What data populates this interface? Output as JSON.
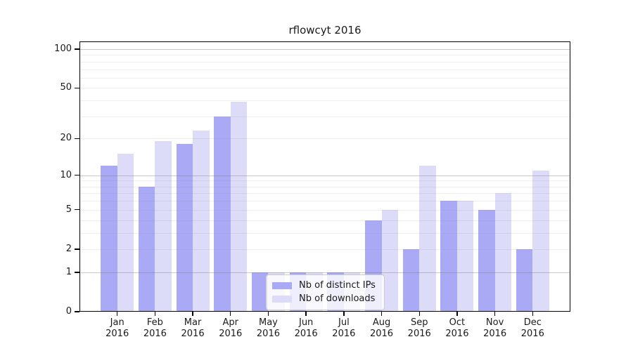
{
  "chart_data": {
    "type": "bar",
    "title": "rflowcyt 2016",
    "categories": [
      "Jan",
      "Feb",
      "Mar",
      "Apr",
      "May",
      "Jun",
      "Jul",
      "Aug",
      "Sep",
      "Oct",
      "Nov",
      "Dec"
    ],
    "year_label": "2016",
    "series": [
      {
        "name": "Nb of distinct IPs",
        "color": "#a9a9f6",
        "values": [
          12,
          8,
          18,
          30,
          1,
          1,
          1,
          4,
          2,
          6,
          5,
          2
        ]
      },
      {
        "name": "Nb of downloads",
        "color": "#dcdcf9",
        "values": [
          15,
          19,
          23,
          39,
          1,
          1,
          1,
          5,
          12,
          6,
          7,
          11
        ]
      }
    ],
    "y_axis": {
      "scale": "log1p",
      "tick_labels": [
        0,
        1,
        2,
        5,
        10,
        20,
        50,
        100
      ],
      "major_gridlines": [
        1,
        10,
        100
      ],
      "minor_gridlines": [
        2,
        3,
        4,
        5,
        6,
        7,
        8,
        9,
        20,
        30,
        40,
        50,
        60,
        70,
        80,
        90
      ],
      "ylim": [
        0,
        113
      ]
    },
    "legend_position": "lower center",
    "grid": "on",
    "colors": {
      "axis": "#000000",
      "text": "#1a1a1a",
      "grid_major": "#c8c8c8",
      "grid_minor": "#ebebeb",
      "background": "#ffffff",
      "legend_border": "#cbcbcb"
    }
  }
}
